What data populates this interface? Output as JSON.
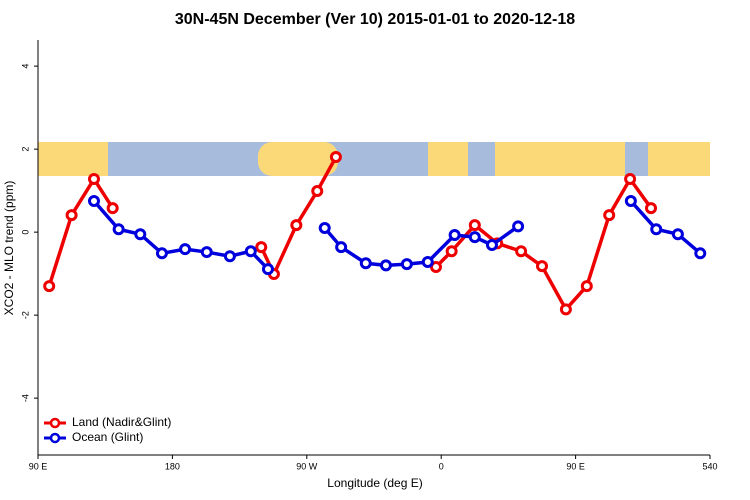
{
  "chart_data": {
    "type": "line",
    "title": "30N-45N December (Ver 10)   2015-01-01 to 2020-12-18",
    "x_label": "Longitude (deg E)",
    "y_label": "XCO2 - MLO trend (ppm)",
    "xlim": [
      90,
      540
    ],
    "xticks": [
      {
        "value": 90,
        "label": "90 E"
      },
      180,
      {
        "value": 270,
        "label": "90 W"
      },
      {
        "value": 360,
        "label": "0"
      },
      {
        "value": 450,
        "label": "90 E"
      },
      540
    ],
    "ylim": [
      -5.37,
      4.63
    ],
    "yticks": [
      -4,
      -2,
      0,
      2,
      4
    ],
    "legend": "bottomleft",
    "series": [
      {
        "name": "Land (Nadir&Glint)",
        "color": "#ee0000",
        "x": [
          97.5,
          112.5,
          127.5,
          140,
          null,
          239.5,
          248,
          263,
          277,
          289.5,
          null,
          356.5,
          367,
          382.5,
          397.5,
          413.5,
          427.5,
          443.5,
          457.5,
          472.5,
          486.5,
          500.5
        ],
        "values": [
          -1.3,
          0.41,
          1.28,
          0.58,
          null,
          -0.36,
          -1.01,
          0.17,
          0.99,
          1.81,
          null,
          -0.84,
          -0.46,
          0.17,
          -0.27,
          -0.46,
          -0.82,
          -1.86,
          -1.3,
          0.41,
          1.28,
          0.58
        ]
      },
      {
        "name": "Ocean (Glint)",
        "color": "#0000dd",
        "x": [
          127.5,
          144,
          158.5,
          173,
          188.5,
          203,
          218.5,
          232.5,
          244,
          null,
          282,
          293,
          309.5,
          323,
          337,
          351,
          369,
          382.5,
          394,
          411.5,
          null,
          487,
          504,
          518.5,
          533.5
        ],
        "values": [
          0.75,
          0.07,
          -0.05,
          -0.51,
          -0.41,
          -0.48,
          -0.58,
          -0.46,
          -0.89,
          null,
          0.1,
          -0.36,
          -0.75,
          -0.8,
          -0.77,
          -0.72,
          -0.07,
          -0.12,
          -0.31,
          0.14,
          null,
          0.75,
          0.07,
          -0.05,
          -0.51
        ]
      }
    ]
  }
}
